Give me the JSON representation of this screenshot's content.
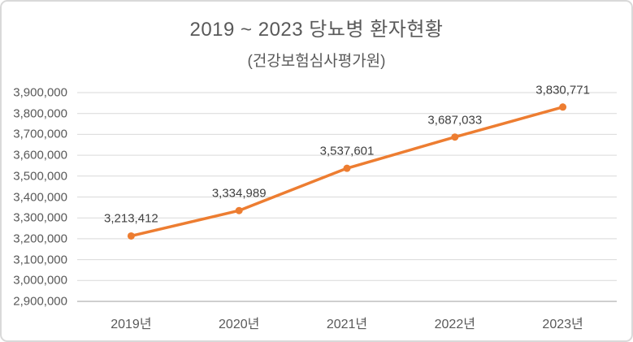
{
  "chart_data": {
    "type": "line",
    "title": "2019 ~ 2023 당뇨병 환자현황",
    "subtitle": "(건강보험심사평가원)",
    "categories": [
      "2019년",
      "2020년",
      "2021년",
      "2022년",
      "2023년"
    ],
    "values": [
      3213412,
      3334989,
      3537601,
      3687033,
      3830771
    ],
    "data_labels": [
      "3,213,412",
      "3,334,989",
      "3,537,601",
      "3,687,033",
      "3,830,771"
    ],
    "y_ticks": [
      2900000,
      3000000,
      3100000,
      3200000,
      3300000,
      3400000,
      3500000,
      3600000,
      3700000,
      3800000,
      3900000
    ],
    "y_tick_labels": [
      "2,900,000",
      "3,000,000",
      "3,100,000",
      "3,200,000",
      "3,300,000",
      "3,400,000",
      "3,500,000",
      "3,600,000",
      "3,700,000",
      "3,800,000",
      "3,900,000"
    ],
    "ylim": [
      2900000,
      3900000
    ],
    "xlabel": "",
    "ylabel": "",
    "grid": true,
    "legend": "none",
    "marker": "circle",
    "colors": {
      "line": "#ED7D31",
      "marker": "#ED7D31",
      "gridline": "#D9D9D9",
      "axis_line": "#BFBFBF",
      "title": "#595959",
      "subtitle": "#595959",
      "tick_label": "#595959",
      "data_label": "#404040",
      "background": "#FFFFFF",
      "frame_border": "#D9D9D9"
    }
  }
}
